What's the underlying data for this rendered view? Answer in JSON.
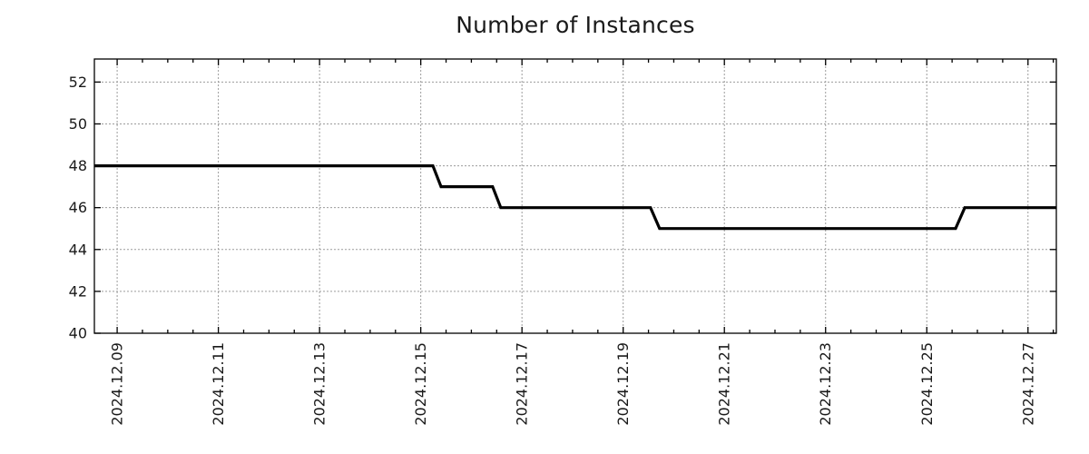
{
  "chart_data": {
    "type": "line",
    "step": true,
    "title": "Number of Instances",
    "xlabel": "",
    "ylabel": "",
    "x_unit": "date (December 2024, day-of-month as number)",
    "xlim": [
      8.55,
      27.56
    ],
    "ylim": [
      40,
      53.1
    ],
    "y_ticks": [
      40,
      42,
      44,
      46,
      48,
      50,
      52
    ],
    "x_ticks": [
      {
        "pos": 9,
        "label": "2024.12.09"
      },
      {
        "pos": 11,
        "label": "2024.12.11"
      },
      {
        "pos": 13,
        "label": "2024.12.13"
      },
      {
        "pos": 15,
        "label": "2024.12.15"
      },
      {
        "pos": 17,
        "label": "2024.12.17"
      },
      {
        "pos": 19,
        "label": "2024.12.19"
      },
      {
        "pos": 21,
        "label": "2024.12.21"
      },
      {
        "pos": 23,
        "label": "2024.12.23"
      },
      {
        "pos": 25,
        "label": "2024.12.25"
      },
      {
        "pos": 27,
        "label": "2024.12.27"
      }
    ],
    "x_minor_tick_step": 0.5,
    "grid": true,
    "legend": "none",
    "line_color": "#000000",
    "grid_color": "#9c9c9c",
    "axis_color": "#000000",
    "text_color": "#1a1a1a",
    "series": [
      {
        "name": "Number of Instances",
        "points": [
          [
            8.55,
            48
          ],
          [
            15.24,
            48
          ],
          [
            15.4,
            47
          ],
          [
            16.42,
            47
          ],
          [
            16.58,
            46
          ],
          [
            19.54,
            46
          ],
          [
            19.72,
            45
          ],
          [
            25.57,
            45
          ],
          [
            25.75,
            46
          ],
          [
            27.56,
            46
          ]
        ]
      }
    ]
  }
}
